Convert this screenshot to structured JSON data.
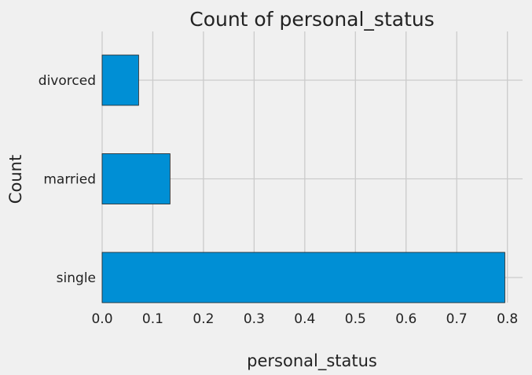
{
  "chart_data": {
    "type": "bar",
    "orientation": "horizontal",
    "title": "Count of personal_status",
    "xlabel": "personal_status",
    "ylabel": "Count",
    "categories": [
      "single",
      "married",
      "divorced"
    ],
    "values": [
      0.795,
      0.134,
      0.072
    ],
    "xlim": [
      0,
      0.83
    ],
    "xticks": [
      0.0,
      0.1,
      0.2,
      0.3,
      0.4,
      0.5,
      0.6,
      0.7,
      0.8
    ],
    "xtick_labels": [
      "0.0",
      "0.1",
      "0.2",
      "0.3",
      "0.4",
      "0.5",
      "0.6",
      "0.7",
      "0.8"
    ],
    "grid": true,
    "colors": {
      "bar": "#008fd5",
      "bar_edge": "#222222",
      "background": "#f0f0f0",
      "grid": "#cbcbcb"
    }
  }
}
